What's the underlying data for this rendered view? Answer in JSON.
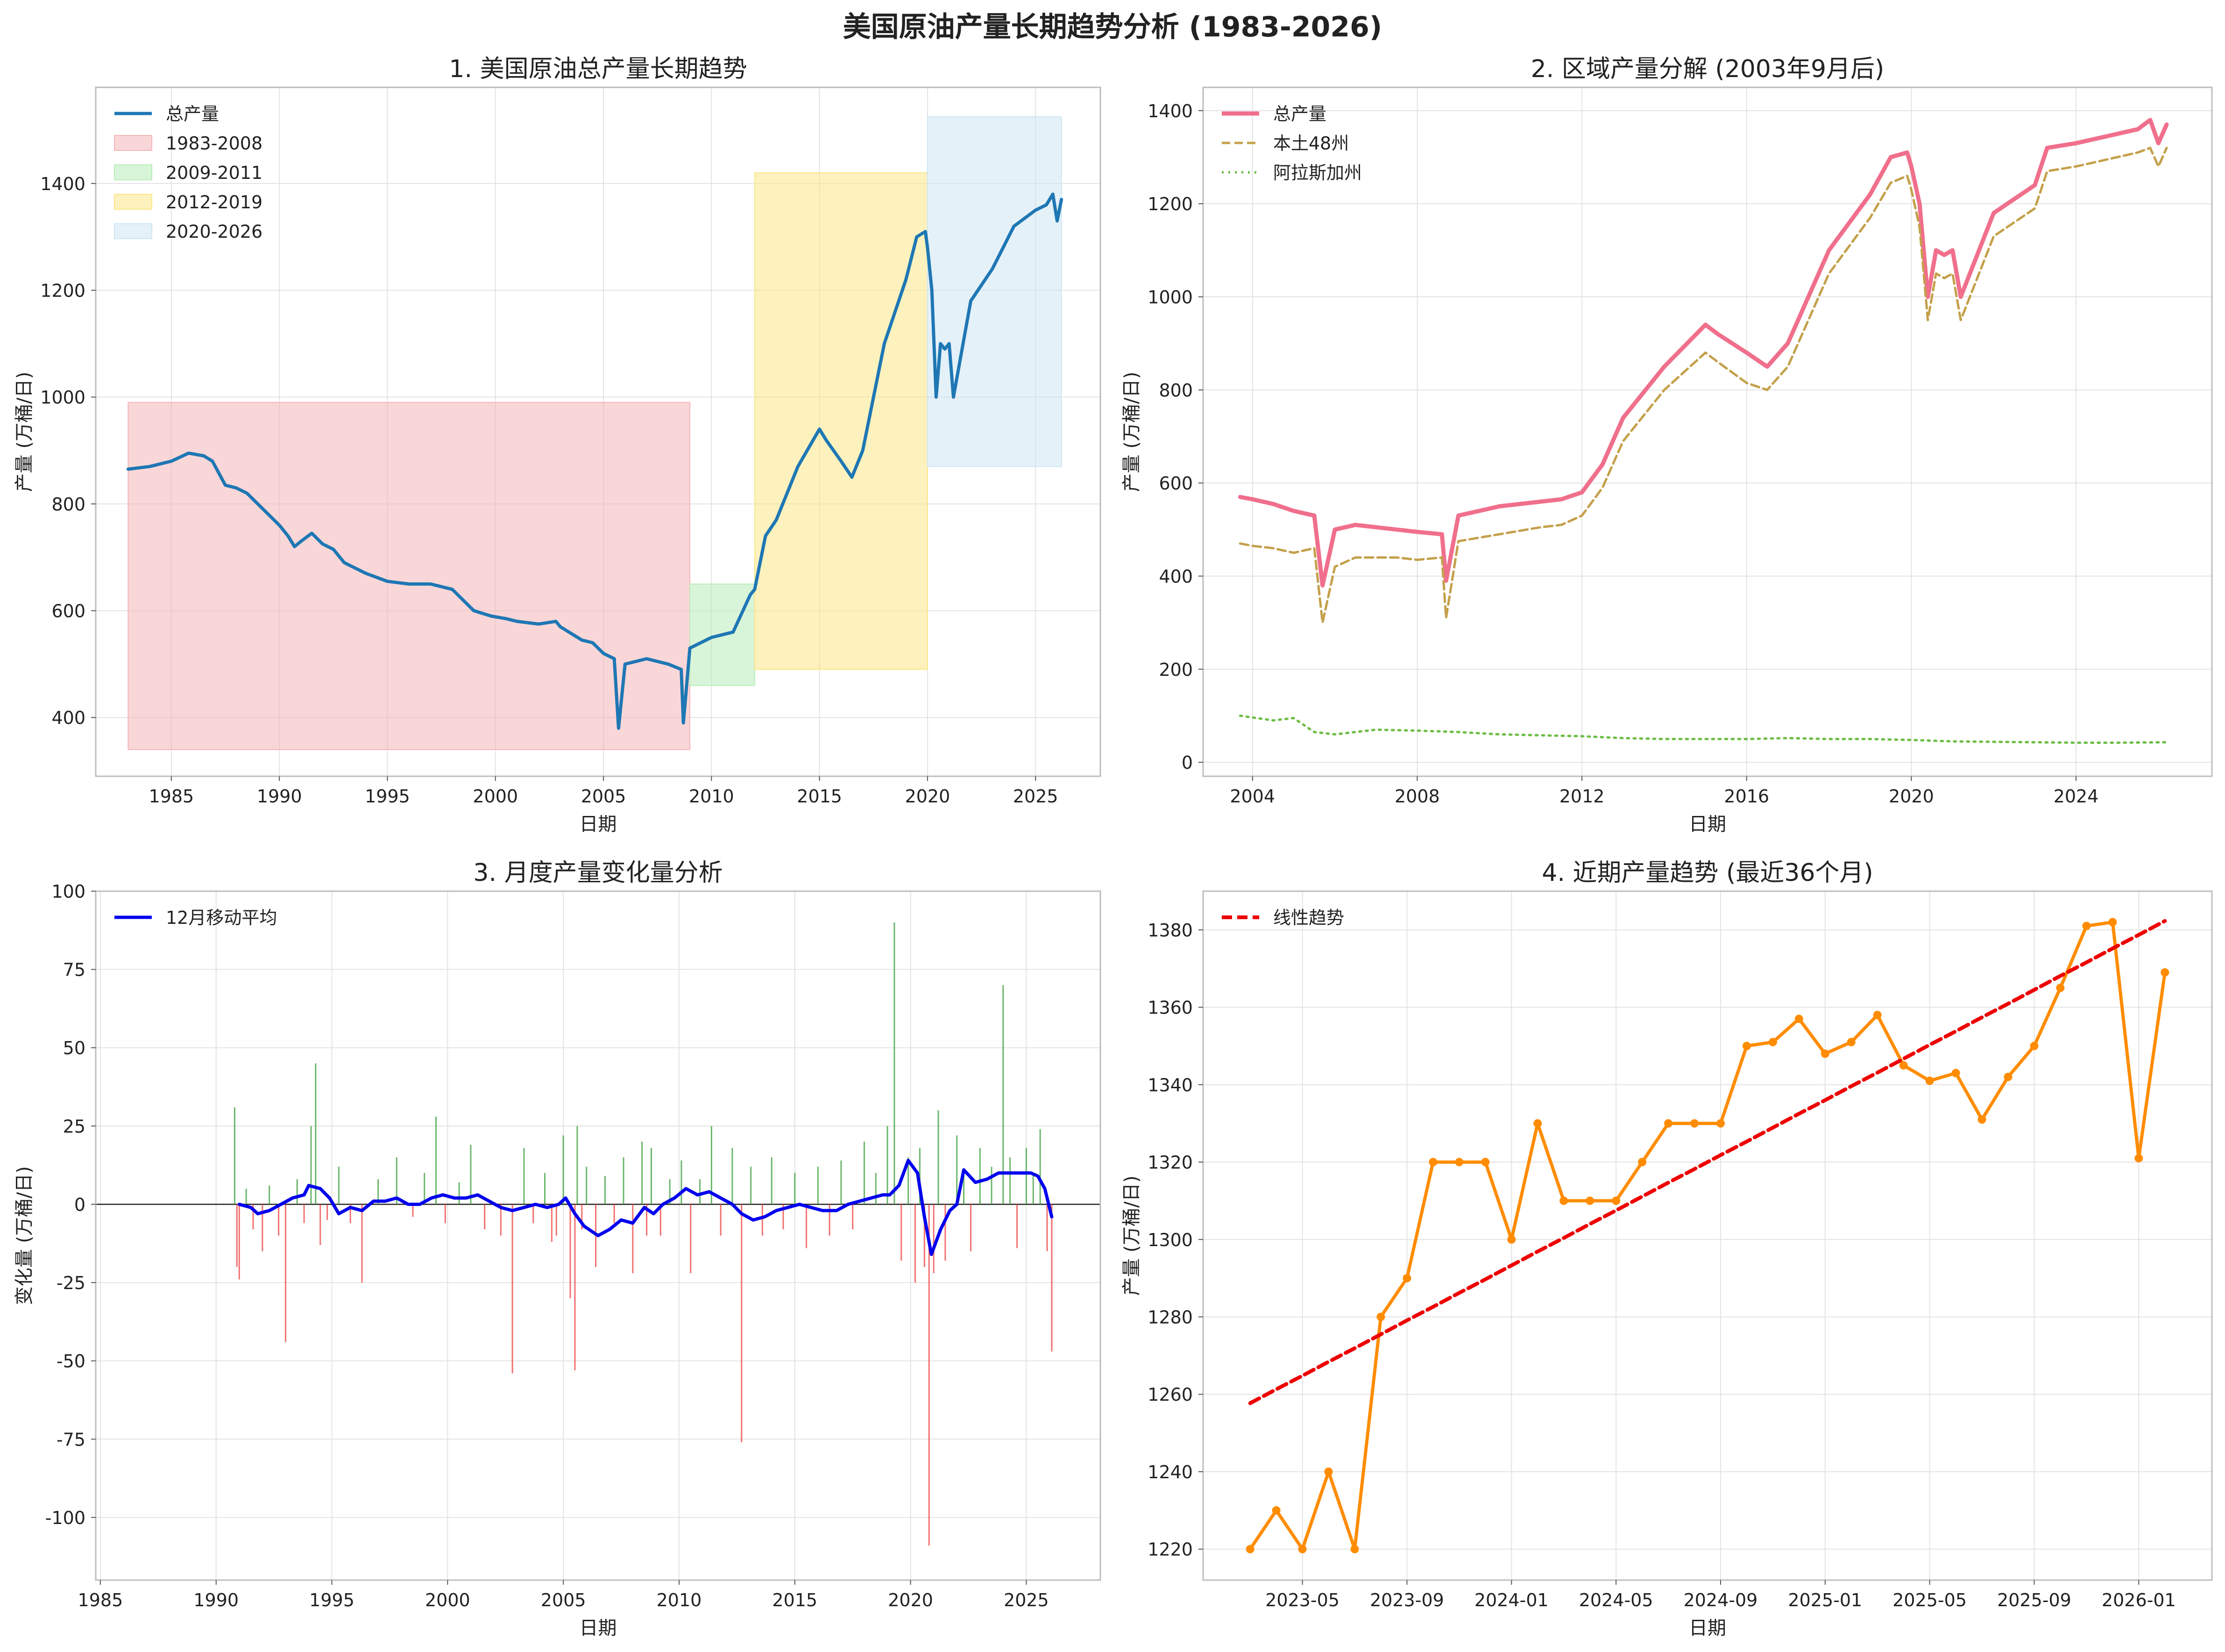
{
  "suptitle": "美国原油产量长期趋势分析 (1983-2026)",
  "chart_data": [
    {
      "type": "line",
      "title": "1. 美国原油总产量长期趋势",
      "xlabel": "日期",
      "ylabel": "产量 (万桶/日)",
      "xlim": [
        1981.5,
        2028.0
      ],
      "ylim": [
        290,
        1580
      ],
      "xticks": [
        1985,
        1990,
        1995,
        2000,
        2005,
        2010,
        2015,
        2020,
        2025
      ],
      "yticks": [
        400,
        600,
        800,
        1000,
        1200,
        1400
      ],
      "legend_position": "top-left",
      "grid": true,
      "series": [
        {
          "name": "总产量",
          "color": "#1f77b4",
          "x": [
            1983.0,
            1984.0,
            1985.0,
            1985.8,
            1986.5,
            1986.9,
            1987.5,
            1988.0,
            1988.5,
            1989.0,
            1989.5,
            1990.0,
            1990.4,
            1990.7,
            1991.0,
            1991.5,
            1992.0,
            1992.5,
            1993.0,
            1993.5,
            1994.0,
            1995.0,
            1996.0,
            1997.0,
            1998.0,
            1999.0,
            1999.8,
            2000.5,
            2001.0,
            2002.0,
            2002.8,
            2003.0,
            2004.0,
            2004.5,
            2005.0,
            2005.5,
            2005.7,
            2006.0,
            2007.0,
            2008.0,
            2008.6,
            2008.7,
            2009.0,
            2010.0,
            2011.0,
            2011.8,
            2012.0,
            2012.5,
            2013.0,
            2014.0,
            2015.0,
            2015.3,
            2016.0,
            2016.5,
            2017.0,
            2018.0,
            2019.0,
            2019.5,
            2019.9,
            2020.0,
            2020.2,
            2020.4,
            2020.6,
            2020.8,
            2021.0,
            2021.2,
            2022.0,
            2023.0,
            2024.0,
            2025.0,
            2025.5,
            2025.8,
            2026.0,
            2026.2
          ],
          "y": [
            865,
            870,
            880,
            895,
            890,
            880,
            835,
            830,
            820,
            800,
            780,
            760,
            740,
            720,
            730,
            745,
            725,
            715,
            690,
            680,
            670,
            655,
            650,
            650,
            640,
            600,
            590,
            585,
            580,
            575,
            580,
            570,
            545,
            540,
            520,
            510,
            380,
            500,
            510,
            500,
            490,
            390,
            530,
            550,
            560,
            630,
            640,
            740,
            770,
            870,
            940,
            920,
            880,
            850,
            900,
            1100,
            1220,
            1300,
            1310,
            1280,
            1200,
            1000,
            1100,
            1090,
            1100,
            1000,
            1180,
            1240,
            1320,
            1350,
            1360,
            1380,
            1330,
            1370
          ]
        }
      ],
      "spans": [
        {
          "name": "1983-2008",
          "color": "#f4b6b8",
          "x": [
            1983.0,
            2009.0
          ],
          "y": [
            340,
            990
          ]
        },
        {
          "name": "2009-2011",
          "color": "#b9ecb9",
          "x": [
            2009.0,
            2012.0
          ],
          "y": [
            460,
            650
          ]
        },
        {
          "name": "2012-2019",
          "color": "#fbe788",
          "x": [
            2012.0,
            2020.0
          ],
          "y": [
            490,
            1420
          ]
        },
        {
          "name": "2020-2026",
          "color": "#cde6f4",
          "x": [
            2020.0,
            2026.2
          ],
          "y": [
            870,
            1525
          ]
        }
      ]
    },
    {
      "type": "line",
      "title": "2. 区域产量分解 (2003年9月后)",
      "xlabel": "日期",
      "ylabel": "产量 (万桶/日)",
      "xlim": [
        2002.8,
        2027.3
      ],
      "ylim": [
        -30,
        1450
      ],
      "xticks": [
        2004,
        2008,
        2012,
        2016,
        2020,
        2024
      ],
      "yticks": [
        0,
        200,
        400,
        600,
        800,
        1000,
        1200,
        1400
      ],
      "legend_position": "top-left",
      "grid": true,
      "series": [
        {
          "name": "总产量",
          "color": "#f06f8c",
          "x": [
            2003.7,
            2004.0,
            2004.5,
            2005.0,
            2005.5,
            2005.7,
            2006.0,
            2006.5,
            2007.0,
            2007.5,
            2008.0,
            2008.6,
            2008.7,
            2009.0,
            2010.0,
            2011.0,
            2011.5,
            2012.0,
            2012.5,
            2013.0,
            2014.0,
            2015.0,
            2015.3,
            2016.0,
            2016.5,
            2017.0,
            2018.0,
            2019.0,
            2019.5,
            2019.9,
            2020.0,
            2020.2,
            2020.4,
            2020.6,
            2020.8,
            2021.0,
            2021.2,
            2022.0,
            2023.0,
            2023.3,
            2024.0,
            2025.0,
            2025.5,
            2025.8,
            2026.0,
            2026.2
          ],
          "y": [
            570,
            565,
            555,
            540,
            530,
            380,
            500,
            510,
            505,
            500,
            495,
            490,
            390,
            530,
            550,
            560,
            565,
            580,
            640,
            740,
            850,
            940,
            920,
            880,
            850,
            900,
            1100,
            1220,
            1300,
            1310,
            1280,
            1200,
            1000,
            1100,
            1090,
            1100,
            1000,
            1180,
            1240,
            1320,
            1330,
            1350,
            1360,
            1380,
            1330,
            1370
          ]
        },
        {
          "name": "本土48州",
          "color": "#c4a04a",
          "x": [
            2003.7,
            2004.0,
            2004.5,
            2005.0,
            2005.5,
            2005.7,
            2006.0,
            2006.5,
            2007.0,
            2007.5,
            2008.0,
            2008.6,
            2008.7,
            2009.0,
            2010.0,
            2011.0,
            2011.5,
            2012.0,
            2012.5,
            2013.0,
            2014.0,
            2015.0,
            2015.3,
            2016.0,
            2016.5,
            2017.0,
            2018.0,
            2019.0,
            2019.5,
            2019.9,
            2020.0,
            2020.2,
            2020.4,
            2020.6,
            2020.8,
            2021.0,
            2021.2,
            2022.0,
            2023.0,
            2023.3,
            2024.0,
            2025.0,
            2025.5,
            2025.8,
            2026.0,
            2026.2
          ],
          "y": [
            470,
            465,
            460,
            450,
            460,
            300,
            420,
            440,
            440,
            440,
            435,
            440,
            310,
            475,
            490,
            505,
            510,
            530,
            590,
            690,
            800,
            880,
            860,
            815,
            800,
            850,
            1050,
            1170,
            1245,
            1260,
            1230,
            1150,
            950,
            1050,
            1040,
            1050,
            950,
            1130,
            1190,
            1270,
            1280,
            1300,
            1310,
            1320,
            1280,
            1320
          ]
        },
        {
          "name": "阿拉斯加州",
          "color": "#6cbd45",
          "x": [
            2003.7,
            2004.5,
            2005.0,
            2005.5,
            2006.0,
            2007.0,
            2008.0,
            2009.0,
            2010.0,
            2011.0,
            2012.0,
            2013.0,
            2014.0,
            2015.0,
            2016.0,
            2017.0,
            2018.0,
            2019.0,
            2020.0,
            2021.0,
            2022.0,
            2023.0,
            2024.0,
            2025.0,
            2026.2
          ],
          "y": [
            100,
            90,
            95,
            65,
            60,
            70,
            68,
            65,
            60,
            58,
            56,
            52,
            50,
            50,
            50,
            52,
            50,
            50,
            48,
            45,
            44,
            43,
            42,
            42,
            43
          ]
        }
      ]
    },
    {
      "type": "bar",
      "title": "3. 月度产量变化量分析",
      "xlabel": "日期",
      "ylabel": "变化量 (万桶/日)",
      "xlim": [
        1984.8,
        2028.2
      ],
      "ylim": [
        -120,
        100
      ],
      "xticks": [
        1985,
        1990,
        1995,
        2000,
        2005,
        2010,
        2015,
        2020,
        2025
      ],
      "yticks": [
        -100,
        -75,
        -50,
        -25,
        0,
        25,
        50,
        75,
        100
      ],
      "legend_position": "top-left",
      "grid": true,
      "positive_color": "#3a9e3a",
      "negative_color": "#ee4040",
      "bars": {
        "x": [
          1990.8,
          1990.9,
          1991.0,
          1991.3,
          1991.6,
          1992.0,
          1992.3,
          1992.7,
          1993.0,
          1993.5,
          1993.8,
          1994.1,
          1994.3,
          1994.5,
          1994.8,
          1995.3,
          1995.8,
          1996.3,
          1997.0,
          1997.8,
          1998.5,
          1999.0,
          1999.5,
          1999.9,
          2000.5,
          2001.0,
          2001.6,
          2002.3,
          2002.8,
          2003.3,
          2003.7,
          2004.2,
          2004.5,
          2004.7,
          2005.0,
          2005.3,
          2005.5,
          2005.6,
          2005.8,
          2006.0,
          2006.4,
          2006.8,
          2007.2,
          2007.6,
          2008.0,
          2008.4,
          2008.6,
          2008.8,
          2009.2,
          2009.6,
          2010.1,
          2010.5,
          2010.9,
          2011.4,
          2011.8,
          2012.3,
          2012.7,
          2013.1,
          2013.6,
          2014.0,
          2014.5,
          2015.0,
          2015.5,
          2016.0,
          2016.5,
          2017.0,
          2017.5,
          2018.0,
          2018.5,
          2019.0,
          2019.3,
          2019.6,
          2019.9,
          2020.2,
          2020.4,
          2020.6,
          2020.8,
          2021.0,
          2021.2,
          2021.5,
          2022.0,
          2022.3,
          2022.6,
          2023.0,
          2023.5,
          2024.0,
          2024.3,
          2024.6,
          2025.0,
          2025.3,
          2025.6,
          2025.9,
          2026.1
        ],
        "y": [
          31,
          -20,
          -24,
          5,
          -8,
          -15,
          6,
          -10,
          -44,
          8,
          -6,
          25,
          45,
          -13,
          -5,
          12,
          -6,
          -25,
          8,
          15,
          -4,
          10,
          28,
          -6,
          7,
          19,
          -8,
          -10,
          -54,
          18,
          -6,
          10,
          -12,
          -10,
          22,
          -30,
          -53,
          25,
          -8,
          12,
          -20,
          9,
          -6,
          15,
          -22,
          20,
          -10,
          18,
          -10,
          8,
          14,
          -22,
          8,
          25,
          -10,
          18,
          -76,
          12,
          -10,
          15,
          -8,
          10,
          -14,
          12,
          -10,
          14,
          -8,
          20,
          10,
          25,
          90,
          -18,
          15,
          -25,
          18,
          -20,
          -109,
          -22,
          30,
          -18,
          22,
          10,
          -15,
          18,
          12,
          70,
          15,
          -14,
          18,
          10,
          24,
          -15,
          -47
        ]
      },
      "series": [
        {
          "name": "12月移动平均",
          "color": "#0000ee",
          "x": [
            1991.0,
            1991.5,
            1991.8,
            1992.3,
            1992.8,
            1993.3,
            1993.8,
            1994.0,
            1994.5,
            1994.9,
            1995.3,
            1995.8,
            1996.3,
            1996.8,
            1997.3,
            1997.8,
            1998.3,
            1998.8,
            1999.3,
            1999.8,
            2000.3,
            2000.8,
            2001.3,
            2001.8,
            2002.3,
            2002.8,
            2003.3,
            2003.8,
            2004.3,
            2004.8,
            2005.1,
            2005.5,
            2005.9,
            2006.5,
            2007.0,
            2007.5,
            2008.0,
            2008.5,
            2008.9,
            2009.3,
            2009.8,
            2010.3,
            2010.8,
            2011.3,
            2011.8,
            2012.3,
            2012.7,
            2013.2,
            2013.7,
            2014.2,
            2014.7,
            2015.2,
            2015.7,
            2016.2,
            2016.8,
            2017.3,
            2017.8,
            2018.3,
            2018.8,
            2019.1,
            2019.5,
            2019.9,
            2020.3,
            2020.6,
            2020.9,
            2021.3,
            2021.7,
            2022.0,
            2022.3,
            2022.8,
            2023.3,
            2023.8,
            2024.3,
            2024.8,
            2025.2,
            2025.5,
            2025.8,
            2026.1
          ],
          "y": [
            0,
            -1,
            -3,
            -2,
            0,
            2,
            3,
            6,
            5,
            2,
            -3,
            -1,
            -2,
            1,
            1,
            2,
            0,
            0,
            2,
            3,
            2,
            2,
            3,
            1,
            -1,
            -2,
            -1,
            0,
            -1,
            0,
            2,
            -3,
            -7,
            -10,
            -8,
            -5,
            -6,
            -1,
            -3,
            0,
            2,
            5,
            3,
            4,
            2,
            0,
            -3,
            -5,
            -4,
            -2,
            -1,
            0,
            -1,
            -2,
            -2,
            0,
            1,
            2,
            3,
            3,
            6,
            14,
            10,
            -4,
            -16,
            -8,
            -2,
            0,
            11,
            7,
            8,
            10,
            10,
            10,
            10,
            9,
            5,
            -4
          ]
        }
      ]
    },
    {
      "type": "line",
      "title": "4. 近期产量趋势 (最近36个月)",
      "xlabel": "日期",
      "ylabel": "产量 (万桶/日)",
      "ylim": [
        1212,
        1390
      ],
      "xticks": [
        "2023-05",
        "2023-09",
        "2024-01",
        "2024-05",
        "2024-09",
        "2025-01",
        "2025-05",
        "2025-09",
        "2026-01"
      ],
      "yticks": [
        1220,
        1240,
        1260,
        1280,
        1300,
        1320,
        1340,
        1360,
        1380
      ],
      "legend_position": "top-left",
      "grid": true,
      "x": [
        "2023-03",
        "2023-04",
        "2023-05",
        "2023-06",
        "2023-07",
        "2023-08",
        "2023-09",
        "2023-10",
        "2023-11",
        "2023-12",
        "2024-01",
        "2024-02",
        "2024-03",
        "2024-04",
        "2024-05",
        "2024-06",
        "2024-07",
        "2024-08",
        "2024-09",
        "2024-10",
        "2024-11",
        "2024-12",
        "2025-01",
        "2025-02",
        "2025-03",
        "2025-04",
        "2025-05",
        "2025-06",
        "2025-07",
        "2025-08",
        "2025-09",
        "2025-10",
        "2025-11",
        "2025-12",
        "2026-01",
        "2026-02"
      ],
      "series": [
        {
          "name": "",
          "color": "#ff8c00",
          "y": [
            1220,
            1230,
            1220,
            1240,
            1220,
            1280,
            1290,
            1320,
            1320,
            1320,
            1300,
            1330,
            1310,
            1310,
            1310,
            1320,
            1330,
            1330,
            1330,
            1350,
            1351,
            1357,
            1348,
            1351,
            1358,
            1345,
            1341,
            1343,
            1331,
            1342,
            1350,
            1365,
            1381,
            1382,
            1321,
            1369
          ]
        },
        {
          "name": "线性趋势",
          "color": "#ee0000",
          "y": [
            1257.7,
            1261.3,
            1264.8,
            1268.4,
            1271.9,
            1275.5,
            1279.1,
            1282.6,
            1286.2,
            1289.7,
            1293.3,
            1296.9,
            1300.4,
            1304.0,
            1307.5,
            1311.1,
            1314.7,
            1318.2,
            1321.8,
            1325.3,
            1328.9,
            1332.5,
            1336.0,
            1339.6,
            1343.1,
            1346.7,
            1350.3,
            1353.8,
            1357.4,
            1360.9,
            1364.5,
            1368.1,
            1371.6,
            1375.2,
            1378.7,
            1382.3
          ]
        }
      ]
    }
  ]
}
